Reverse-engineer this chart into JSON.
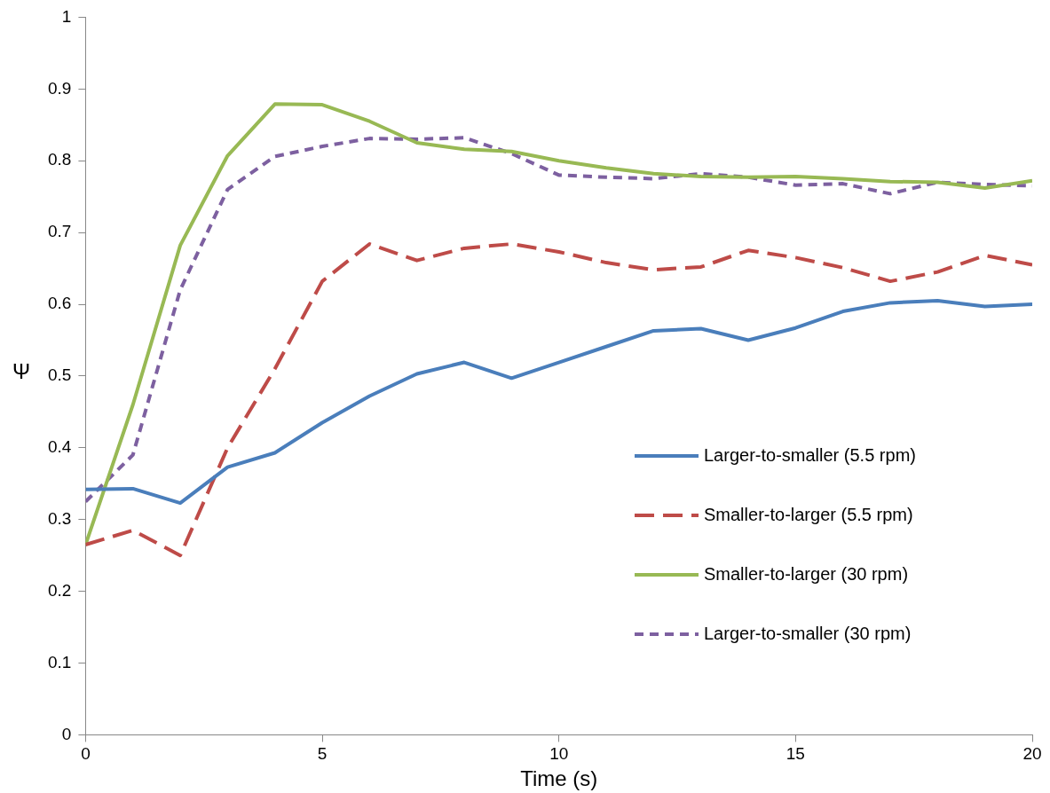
{
  "chart_data": {
    "type": "line",
    "xlabel": "Time (s)",
    "ylabel": "Ψ",
    "x": [
      0,
      1,
      2,
      3,
      4,
      5,
      6,
      7,
      8,
      9,
      10,
      11,
      12,
      13,
      14,
      15,
      16,
      17,
      18,
      19,
      20
    ],
    "xlim": [
      0,
      20
    ],
    "xticks": [
      0,
      5,
      10,
      15,
      20
    ],
    "ylim": [
      0,
      1
    ],
    "yticks": [
      0,
      0.1,
      0.2,
      0.3,
      0.4,
      0.5,
      0.6,
      0.7,
      0.8,
      0.9,
      1
    ],
    "grid": false,
    "legend": "right",
    "marker": "none",
    "series": [
      {
        "name": "Larger-to-smaller (5.5 rpm)",
        "color": "#4a7ebb",
        "line_style": "solid",
        "values": [
          0.342,
          0.343,
          0.323,
          0.373,
          0.393,
          0.435,
          0.472,
          0.503,
          0.519,
          0.497,
          0.519,
          0.541,
          0.563,
          0.566,
          0.55,
          0.567,
          0.59,
          0.602,
          0.605,
          0.597,
          0.6
        ]
      },
      {
        "name": "Smaller-to-larger (5.5 rpm)",
        "color": "#be4b48",
        "line_style": "dashed",
        "values": [
          0.265,
          0.285,
          0.25,
          0.4,
          0.51,
          0.632,
          0.684,
          0.661,
          0.678,
          0.684,
          0.673,
          0.658,
          0.648,
          0.652,
          0.675,
          0.665,
          0.651,
          0.632,
          0.645,
          0.668,
          0.655
        ]
      },
      {
        "name": "Smaller-to-larger (30 rpm)",
        "color": "#98b954",
        "line_style": "solid",
        "values": [
          0.265,
          0.46,
          0.682,
          0.807,
          0.879,
          0.878,
          0.855,
          0.825,
          0.816,
          0.813,
          0.8,
          0.79,
          0.782,
          0.778,
          0.777,
          0.778,
          0.775,
          0.771,
          0.77,
          0.762,
          0.772
        ]
      },
      {
        "name": "Larger-to-smaller (30 rpm)",
        "color": "#7d60a0",
        "line_style": "dotted",
        "values": [
          0.325,
          0.39,
          0.62,
          0.76,
          0.806,
          0.82,
          0.831,
          0.83,
          0.832,
          0.81,
          0.78,
          0.777,
          0.775,
          0.782,
          0.777,
          0.766,
          0.768,
          0.754,
          0.77,
          0.767,
          0.765
        ]
      }
    ]
  }
}
